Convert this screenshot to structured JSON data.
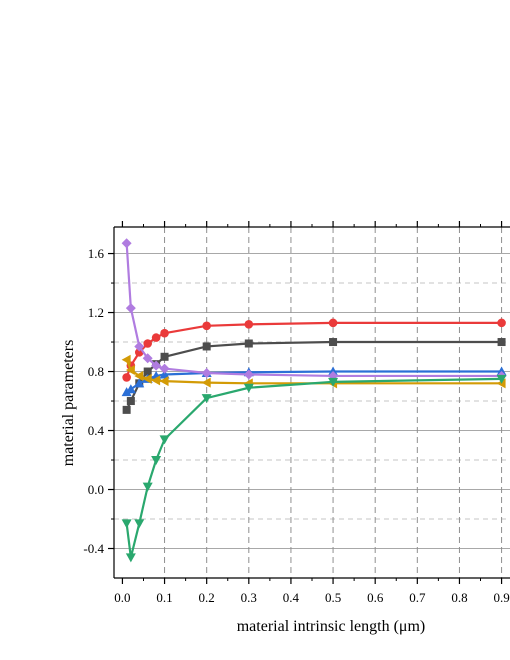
{
  "chart_data": {
    "type": "line",
    "xlabel": "material intrinsic length (μm)",
    "ylabel": "material parameters",
    "xlim": [
      -0.02,
      0.92
    ],
    "ylim": [
      -0.6,
      1.78
    ],
    "x_ticks": [
      0.0,
      0.1,
      0.2,
      0.3,
      0.4,
      0.5,
      0.6,
      0.7,
      0.8,
      0.9
    ],
    "x_tick_labels": [
      "0.0",
      "0.1",
      "0.2",
      "0.3",
      "0.4",
      "0.5",
      "0.6",
      "0.7",
      "0.8",
      "0.9"
    ],
    "y_ticks": [
      -0.4,
      0.0,
      0.4,
      0.8,
      1.2,
      1.6
    ],
    "y_tick_labels": [
      "-0.4",
      "0.0",
      "0.4",
      "0.8",
      "1.2",
      "1.6"
    ],
    "grid": true,
    "legend": "none",
    "series": [
      {
        "color": "#ea3a3a",
        "marker": "circle",
        "x": [
          0.01,
          0.02,
          0.04,
          0.06,
          0.08,
          0.1,
          0.2,
          0.3,
          0.5,
          0.9
        ],
        "y": [
          0.76,
          0.84,
          0.93,
          0.99,
          1.03,
          1.06,
          1.11,
          1.12,
          1.13,
          1.13
        ]
      },
      {
        "color": "#4d4d4d",
        "marker": "square",
        "x": [
          0.01,
          0.02,
          0.04,
          0.06,
          0.08,
          0.1,
          0.2,
          0.3,
          0.5,
          0.9
        ],
        "y": [
          0.54,
          0.6,
          0.72,
          0.8,
          0.85,
          0.9,
          0.97,
          0.99,
          1.0,
          1.0
        ]
      },
      {
        "color": "#2b6fd6",
        "marker": "triangle-up",
        "x": [
          0.01,
          0.02,
          0.04,
          0.06,
          0.08,
          0.1,
          0.2,
          0.3,
          0.5,
          0.9
        ],
        "y": [
          0.66,
          0.68,
          0.72,
          0.75,
          0.77,
          0.78,
          0.79,
          0.795,
          0.8,
          0.8
        ]
      },
      {
        "color": "#b07ce0",
        "marker": "diamond",
        "x": [
          0.01,
          0.02,
          0.04,
          0.06,
          0.08,
          0.1,
          0.2,
          0.3,
          0.5,
          0.9
        ],
        "y": [
          1.67,
          1.23,
          0.97,
          0.89,
          0.84,
          0.82,
          0.79,
          0.78,
          0.77,
          0.77
        ]
      },
      {
        "color": "#d39b06",
        "marker": "triangle-left",
        "x": [
          0.01,
          0.02,
          0.04,
          0.06,
          0.08,
          0.1,
          0.2,
          0.3,
          0.5,
          0.9
        ],
        "y": [
          0.88,
          0.81,
          0.77,
          0.75,
          0.74,
          0.735,
          0.725,
          0.72,
          0.72,
          0.72
        ]
      },
      {
        "color": "#2aa86e",
        "marker": "triangle-down",
        "x": [
          0.01,
          0.02,
          0.04,
          0.06,
          0.08,
          0.1,
          0.2,
          0.3,
          0.5,
          0.9
        ],
        "y": [
          -0.23,
          -0.46,
          -0.23,
          0.02,
          0.2,
          0.34,
          0.62,
          0.69,
          0.73,
          0.75
        ]
      }
    ]
  }
}
